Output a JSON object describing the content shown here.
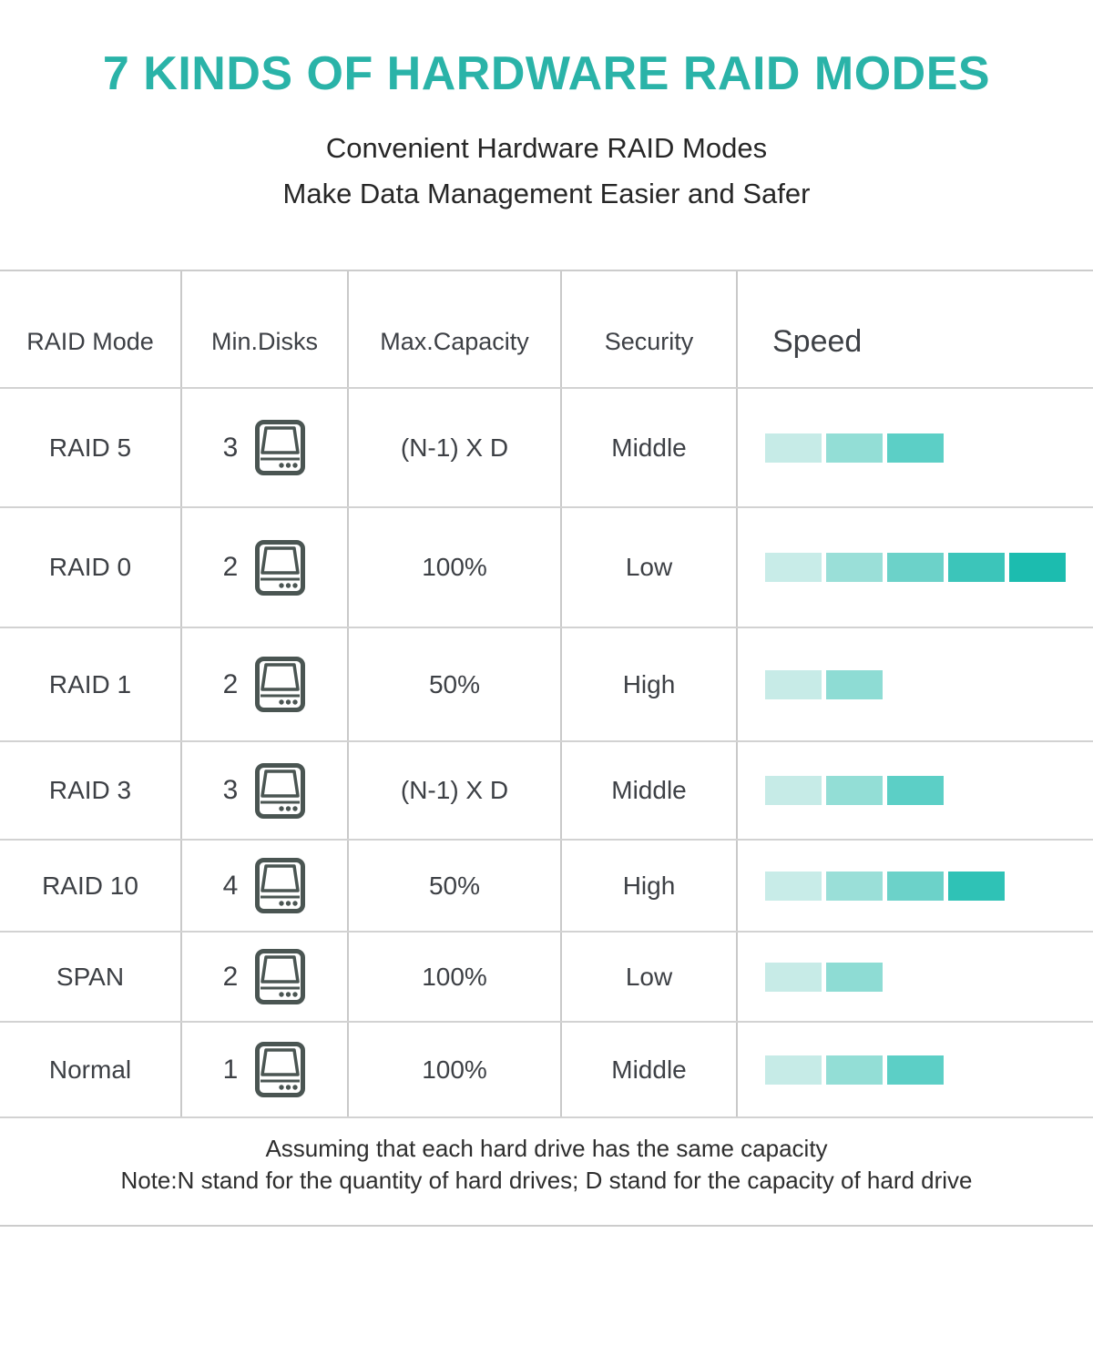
{
  "title": "7 KINDS OF HARDWARE RAID MODES",
  "subtitle": {
    "line1": "Convenient Hardware RAID Modes",
    "line2": "Make Data Management Easier and Safer"
  },
  "colors": {
    "accent_teal": "#2ab3a8",
    "speed_ramp": [
      "#c7ece8",
      "#9be0d9",
      "#6fd4cb",
      "#43c8bd",
      "#1fbdb0"
    ],
    "grid_line": "#cccccc",
    "disk_icon_stroke": "#4a5552"
  },
  "table": {
    "headers": [
      "RAID Mode",
      "Min.Disks",
      "Max.Capacity",
      "Security",
      "Speed"
    ],
    "rows": [
      {
        "mode": "RAID 5",
        "min_disks": "3",
        "max_capacity": "(N-1) X D",
        "security": "Middle",
        "speed_level": 3,
        "speed_colors": [
          "#c6ebe7",
          "#93ded6",
          "#5ccfc6"
        ]
      },
      {
        "mode": "RAID 0",
        "min_disks": "2",
        "max_capacity": "100%",
        "security": "Low",
        "speed_level": 5,
        "speed_colors": [
          "#c8ece8",
          "#9adfd8",
          "#6cd2c9",
          "#3cc5ba",
          "#1cbcaf"
        ]
      },
      {
        "mode": "RAID 1",
        "min_disks": "2",
        "max_capacity": "50%",
        "security": "High",
        "speed_level": 2,
        "speed_colors": [
          "#c7ebe7",
          "#8edcd4"
        ]
      },
      {
        "mode": "RAID 3",
        "min_disks": "3",
        "max_capacity": "(N-1) X D",
        "security": "Middle",
        "speed_level": 3,
        "speed_colors": [
          "#c6ebe7",
          "#93ded6",
          "#5ccfc6"
        ]
      },
      {
        "mode": "RAID 10",
        "min_disks": "4",
        "max_capacity": "50%",
        "security": "High",
        "speed_level": 4,
        "speed_colors": [
          "#c8ece8",
          "#9adfd8",
          "#6cd2c9",
          "#2fc2b6"
        ]
      },
      {
        "mode": "SPAN",
        "min_disks": "2",
        "max_capacity": "100%",
        "security": "Low",
        "speed_level": 2,
        "speed_colors": [
          "#c7ebe7",
          "#8edcd4"
        ]
      },
      {
        "mode": "Normal",
        "min_disks": "1",
        "max_capacity": "100%",
        "security": "Middle",
        "speed_level": 3,
        "speed_colors": [
          "#c6ebe7",
          "#93ded6",
          "#5ccfc6"
        ]
      }
    ]
  },
  "footnote": {
    "line1": "Assuming that each hard drive has the same capacity",
    "line2": "Note:N stand for the quantity of hard drives; D stand for the capacity of hard drive"
  },
  "chart_data": {
    "type": "table",
    "title": "7 KINDS OF HARDWARE RAID MODES",
    "columns": [
      "RAID Mode",
      "Min.Disks",
      "Max.Capacity",
      "Security",
      "Speed (bars, 1-5 scale)"
    ],
    "rows": [
      [
        "RAID 5",
        3,
        "(N-1) X D",
        "Middle",
        3
      ],
      [
        "RAID 0",
        2,
        "100%",
        "Low",
        5
      ],
      [
        "RAID 1",
        2,
        "50%",
        "High",
        2
      ],
      [
        "RAID 3",
        3,
        "(N-1) X D",
        "Middle",
        3
      ],
      [
        "RAID 10",
        4,
        "50%",
        "High",
        4
      ],
      [
        "SPAN",
        2,
        "100%",
        "Low",
        2
      ],
      [
        "Normal",
        1,
        "100%",
        "Middle",
        3
      ]
    ],
    "legend_position": "none",
    "grid": true
  }
}
